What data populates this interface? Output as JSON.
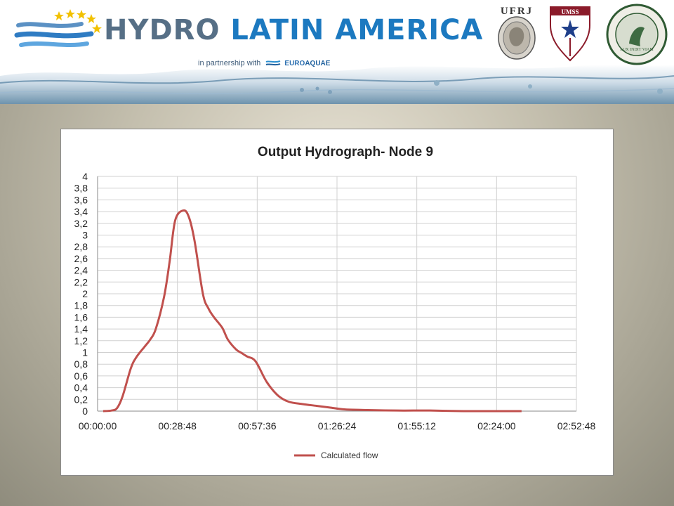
{
  "banner": {
    "logo_hydro": "HYDRO",
    "logo_latin": "LATIN AMERICA",
    "partner_prefix": "in partnership with",
    "partner_brand_a": "EURO",
    "partner_brand_b": "AQUAE",
    "seal_ufrj": "UFRJ",
    "seal_umss": "UMSS",
    "seal_litoral_motto": "LUX INDIT VIAM"
  },
  "colors": {
    "series": "#c0504d",
    "grid": "#d0d0d0",
    "axis": "#8a8a8a",
    "title": "#222222"
  },
  "chart_data": {
    "type": "line",
    "title": "Output Hydrograph- Node 9",
    "xlabel": "",
    "ylabel": "",
    "x_unit": "h:mm:ss",
    "xlim": [
      "00:00:00",
      "02:52:48"
    ],
    "ylim": [
      0,
      4
    ],
    "x_ticks": [
      "00:00:00",
      "00:28:48",
      "00:57:36",
      "01:26:24",
      "01:55:12",
      "02:24:00",
      "02:52:48"
    ],
    "y_ticks": [
      "0",
      "0,2",
      "0,4",
      "0,6",
      "0,8",
      "1",
      "1,2",
      "1,4",
      "1,6",
      "1,8",
      "2",
      "2,2",
      "2,4",
      "2,6",
      "2,8",
      "3",
      "3,2",
      "3,4",
      "3,6",
      "3,8",
      "4"
    ],
    "grid": true,
    "legend_position": "bottom-center",
    "series": [
      {
        "name": "Calculated flow",
        "x": [
          "00:02:00",
          "00:05:00",
          "00:07:00",
          "00:09:00",
          "00:12:00",
          "00:14:00",
          "00:17:00",
          "00:19:00",
          "00:21:00",
          "00:24:00",
          "00:26:00",
          "00:28:00",
          "00:31:00",
          "00:33:00",
          "00:35:00",
          "00:38:00",
          "00:40:00",
          "00:42:00",
          "00:45:00",
          "00:47:00",
          "00:50:00",
          "00:52:00",
          "00:54:00",
          "00:57:00",
          "01:01:00",
          "01:05:00",
          "01:09:00",
          "01:14:00",
          "01:19:00",
          "01:24:00",
          "01:29:00",
          "01:36:00",
          "01:48:00",
          "02:00:00",
          "02:12:00",
          "02:24:00",
          "02:33:00"
        ],
        "y": [
          0.0,
          0.01,
          0.05,
          0.25,
          0.73,
          0.92,
          1.1,
          1.22,
          1.4,
          1.95,
          2.55,
          3.25,
          3.42,
          3.3,
          2.9,
          2.0,
          1.75,
          1.6,
          1.42,
          1.22,
          1.05,
          0.99,
          0.93,
          0.85,
          0.5,
          0.27,
          0.16,
          0.12,
          0.09,
          0.06,
          0.03,
          0.02,
          0.01,
          0.01,
          0.0,
          0.0,
          0.0
        ]
      }
    ]
  }
}
